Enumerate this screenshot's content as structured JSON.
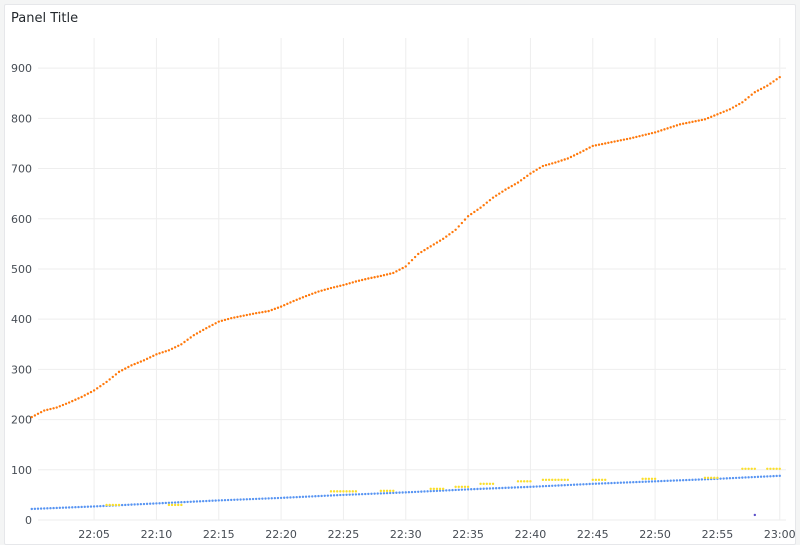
{
  "panel": {
    "title": "Panel Title"
  },
  "colors": {
    "background": "#ffffff",
    "grid": "#eeeeee",
    "orange": "#ff780a",
    "yellow": "#fade2a",
    "blue": "#5794f2",
    "purple": "#5b4fc9"
  },
  "chart_data": {
    "type": "scatter",
    "title": "Panel Title",
    "xlabel": "",
    "ylabel": "",
    "x_ticks": [
      "22:05",
      "22:10",
      "22:15",
      "22:20",
      "22:25",
      "22:30",
      "22:35",
      "22:40",
      "22:45",
      "22:50",
      "22:55",
      "23:00"
    ],
    "y_ticks": [
      0,
      100,
      200,
      300,
      400,
      500,
      600,
      700,
      800,
      900
    ],
    "xlim": [
      "22:00:30",
      "23:00:30"
    ],
    "ylim": [
      0,
      960
    ],
    "grid": true,
    "legend": "none",
    "series": [
      {
        "color": "#ff780a",
        "points": [
          [
            "22:00",
            205
          ],
          [
            "22:01",
            218
          ],
          [
            "22:02",
            224
          ],
          [
            "22:03",
            234
          ],
          [
            "22:04",
            245
          ],
          [
            "22:05",
            258
          ],
          [
            "22:06",
            275
          ],
          [
            "22:07",
            295
          ],
          [
            "22:08",
            308
          ],
          [
            "22:09",
            318
          ],
          [
            "22:10",
            330
          ],
          [
            "22:11",
            338
          ],
          [
            "22:12",
            350
          ],
          [
            "22:13",
            368
          ],
          [
            "22:14",
            382
          ],
          [
            "22:15",
            395
          ],
          [
            "22:16",
            402
          ],
          [
            "22:17",
            407
          ],
          [
            "22:18",
            412
          ],
          [
            "22:19",
            416
          ],
          [
            "22:20",
            425
          ],
          [
            "22:21",
            436
          ],
          [
            "22:22",
            446
          ],
          [
            "22:23",
            455
          ],
          [
            "22:24",
            462
          ],
          [
            "22:25",
            468
          ],
          [
            "22:26",
            475
          ],
          [
            "22:27",
            481
          ],
          [
            "22:28",
            486
          ],
          [
            "22:29",
            492
          ],
          [
            "22:30",
            505
          ],
          [
            "22:31",
            530
          ],
          [
            "22:32",
            545
          ],
          [
            "22:33",
            560
          ],
          [
            "22:34",
            578
          ],
          [
            "22:35",
            605
          ],
          [
            "22:36",
            622
          ],
          [
            "22:37",
            642
          ],
          [
            "22:38",
            658
          ],
          [
            "22:39",
            672
          ],
          [
            "22:40",
            690
          ],
          [
            "22:41",
            705
          ],
          [
            "22:42",
            712
          ],
          [
            "22:43",
            720
          ],
          [
            "22:44",
            732
          ],
          [
            "22:45",
            745
          ],
          [
            "22:46",
            750
          ],
          [
            "22:47",
            755
          ],
          [
            "22:48",
            760
          ],
          [
            "22:49",
            766
          ],
          [
            "22:50",
            772
          ],
          [
            "22:51",
            780
          ],
          [
            "22:52",
            788
          ],
          [
            "22:53",
            793
          ],
          [
            "22:54",
            798
          ],
          [
            "22:55",
            808
          ],
          [
            "22:56",
            818
          ],
          [
            "22:57",
            832
          ],
          [
            "22:58",
            852
          ],
          [
            "22:59",
            865
          ],
          [
            "23:00",
            882
          ]
        ]
      },
      {
        "color": "#5794f2",
        "points": [
          [
            "22:00",
            22
          ],
          [
            "22:05",
            27
          ],
          [
            "22:10",
            33
          ],
          [
            "22:15",
            39
          ],
          [
            "22:20",
            44
          ],
          [
            "22:25",
            50
          ],
          [
            "22:30",
            55
          ],
          [
            "22:35",
            61
          ],
          [
            "22:40",
            66
          ],
          [
            "22:45",
            72
          ],
          [
            "22:50",
            77
          ],
          [
            "22:55",
            82
          ],
          [
            "23:00",
            88
          ]
        ]
      },
      {
        "color": "#fade2a",
        "segments": [
          {
            "start": "22:06",
            "end": "22:07",
            "value": 30
          },
          {
            "start": "22:11",
            "end": "22:12",
            "value": 30
          },
          {
            "start": "22:24",
            "end": "22:26",
            "value": 57
          },
          {
            "start": "22:28",
            "end": "22:29",
            "value": 58
          },
          {
            "start": "22:32",
            "end": "22:33",
            "value": 62
          },
          {
            "start": "22:34",
            "end": "22:35",
            "value": 66
          },
          {
            "start": "22:36",
            "end": "22:37",
            "value": 72
          },
          {
            "start": "22:39",
            "end": "22:40",
            "value": 77
          },
          {
            "start": "22:41",
            "end": "22:43",
            "value": 80
          },
          {
            "start": "22:45",
            "end": "22:46",
            "value": 80
          },
          {
            "start": "22:49",
            "end": "22:50",
            "value": 82
          },
          {
            "start": "22:54",
            "end": "22:55",
            "value": 84
          },
          {
            "start": "22:57",
            "end": "22:58",
            "value": 102
          },
          {
            "start": "22:59",
            "end": "23:00",
            "value": 102
          }
        ]
      },
      {
        "color": "#5b4fc9",
        "points": [
          [
            "22:58",
            10
          ]
        ]
      }
    ]
  }
}
